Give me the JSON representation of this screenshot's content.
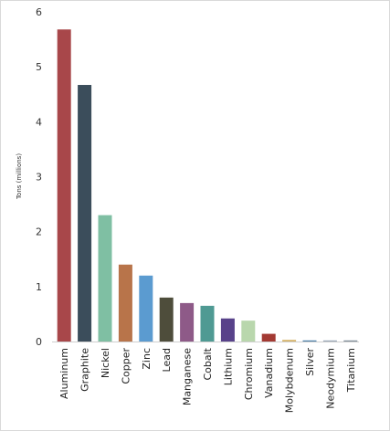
{
  "chart_data": {
    "type": "bar",
    "title": "",
    "xlabel": "",
    "ylabel": "Tons (millions)",
    "ylim": [
      0,
      6
    ],
    "yticks": [
      0,
      1,
      2,
      3,
      4,
      5,
      6
    ],
    "grid": false,
    "legend": "none",
    "categories": [
      "Aluminum",
      "Graphite",
      "Nickel",
      "Copper",
      "Zinc",
      "Lead",
      "Manganese",
      "Cobalt",
      "Lithium",
      "Chromium",
      "Vanadium",
      "Molybdenum",
      "Silver",
      "Neodymium",
      "Titanium"
    ],
    "values": [
      5.68,
      4.67,
      2.3,
      1.4,
      1.2,
      0.8,
      0.7,
      0.65,
      0.42,
      0.38,
      0.14,
      0.03,
      0.02,
      0.02,
      0.02
    ],
    "colors": [
      "#a8474a",
      "#3b4d5b",
      "#7fbfa3",
      "#b8744a",
      "#5b9bd0",
      "#4e4d3b",
      "#8e5a88",
      "#4f9a93",
      "#58428a",
      "#b9d7ad",
      "#a33a33",
      "#d6b46a",
      "#4c7fa8",
      "#9aa8b7",
      "#7f8c99"
    ]
  }
}
